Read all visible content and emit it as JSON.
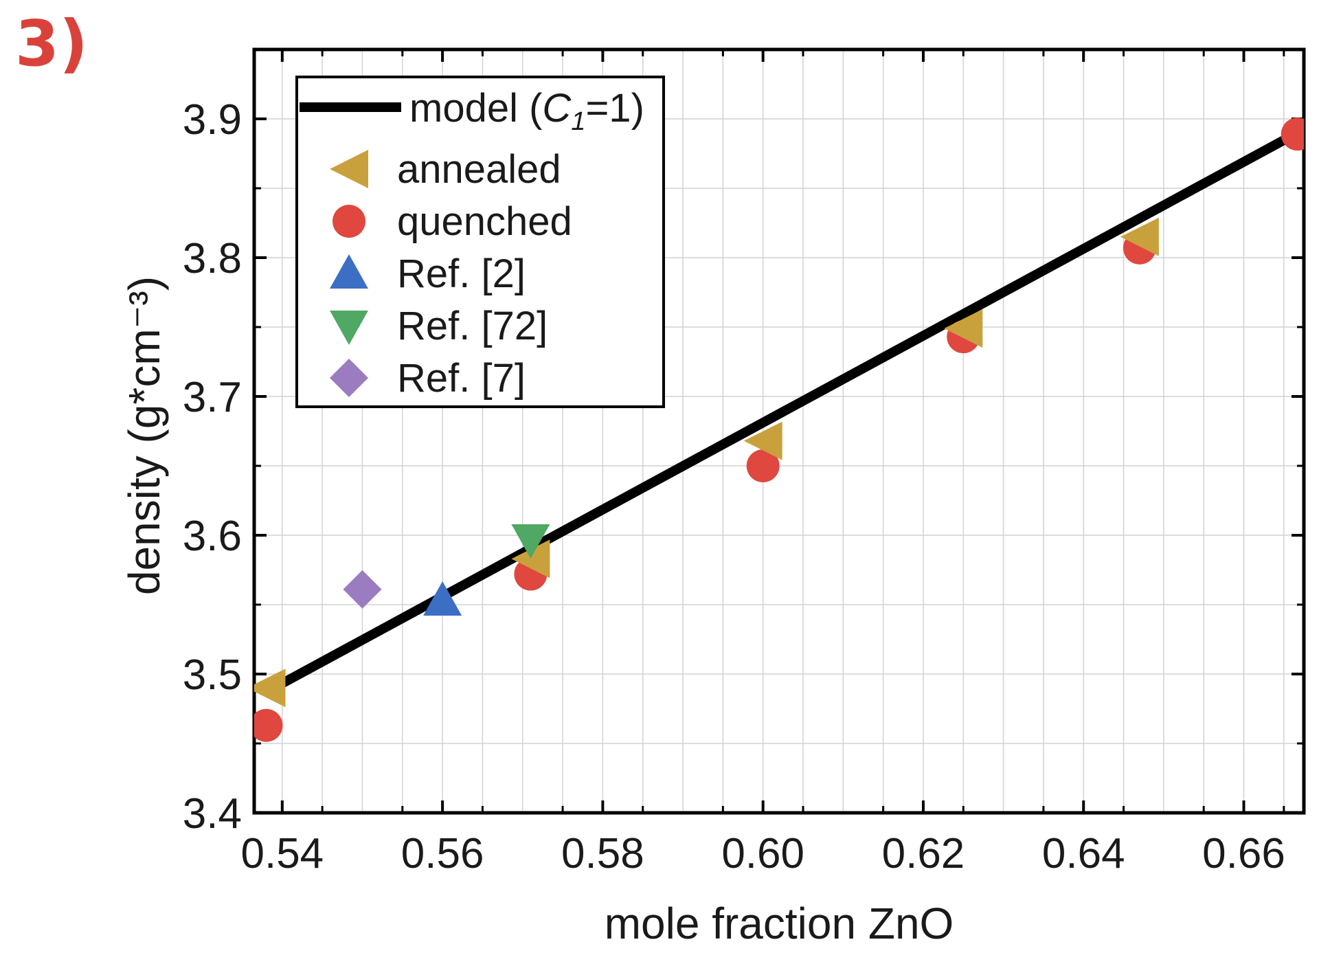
{
  "panel_label": "3)",
  "chart_data": {
    "type": "scatter",
    "title": "",
    "xlabel": "mole fraction ZnO",
    "ylabel": "density (g*cm⁻³)",
    "xlim": [
      0.5365,
      0.6675
    ],
    "ylim": [
      3.4,
      3.95
    ],
    "x_ticks": [
      "0.54",
      "0.56",
      "0.58",
      "0.60",
      "0.62",
      "0.64",
      "0.66"
    ],
    "y_ticks": [
      "3.4",
      "3.5",
      "3.6",
      "3.7",
      "3.8",
      "3.9"
    ],
    "grid": true,
    "legend_position": "top-left",
    "series": [
      {
        "name": "model (C1=1)",
        "label_main": "model (",
        "label_italic": "C",
        "label_sub": "1",
        "label_tail": "=1)",
        "marker": "line",
        "color": "#000000",
        "x": [
          0.538,
          0.6667
        ],
        "y": [
          3.487,
          3.89
        ]
      },
      {
        "name": "annealed",
        "marker": "triangle-left",
        "color": "#c9a13c",
        "x": [
          0.538,
          0.571,
          0.6,
          0.625,
          0.647
        ],
        "y": [
          3.49,
          3.583,
          3.668,
          3.749,
          3.815
        ]
      },
      {
        "name": "quenched",
        "marker": "circle",
        "color": "#e0473f",
        "x": [
          0.538,
          0.571,
          0.6,
          0.625,
          0.647,
          0.6667
        ],
        "y": [
          3.463,
          3.572,
          3.65,
          3.743,
          3.807,
          3.889
        ]
      },
      {
        "name": "Ref. [2]",
        "marker": "triangle-up",
        "color": "#3c6fc4",
        "x": [
          0.56
        ],
        "y": [
          3.553
        ]
      },
      {
        "name": "Ref. [72]",
        "marker": "triangle-down",
        "color": "#4fa863",
        "x": [
          0.571
        ],
        "y": [
          3.597
        ]
      },
      {
        "name": "Ref. [7]",
        "marker": "diamond",
        "color": "#9b7cc0",
        "x": [
          0.55
        ],
        "y": [
          3.561
        ]
      }
    ]
  }
}
